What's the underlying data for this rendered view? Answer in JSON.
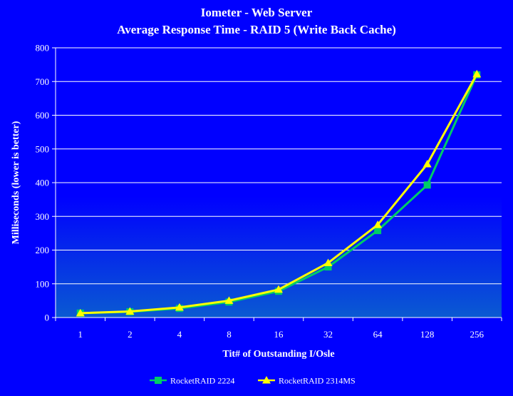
{
  "chart_data": {
    "type": "line",
    "title": "Iometer - Web Server",
    "subtitle": "Average Response Time - RAID 5 (Write Back Cache)",
    "xlabel": "Tit# of Outstanding I/Osle",
    "ylabel": "Milliseconds (lower is better)",
    "categories": [
      "1",
      "2",
      "4",
      "8",
      "16",
      "32",
      "64",
      "128",
      "256"
    ],
    "ylim": [
      0,
      800
    ],
    "yticks": [
      0,
      100,
      200,
      300,
      400,
      500,
      600,
      700,
      800
    ],
    "grid": true,
    "legend_position": "bottom",
    "series": [
      {
        "name": "RocketRAID 2224",
        "values": [
          13,
          17,
          27,
          46,
          78,
          150,
          258,
          393,
          720
        ],
        "color": "#00cc66",
        "marker": "square"
      },
      {
        "name": "RocketRAID 2314MS",
        "values": [
          13,
          18,
          30,
          50,
          83,
          162,
          275,
          455,
          722
        ],
        "color": "#ffff00",
        "marker": "triangle"
      }
    ],
    "colors": {
      "background": "#0000ff",
      "plot_top": "#0000ff",
      "plot_bottom": "#0a5ad2",
      "grid": "#ffffff",
      "text": "#ffffff"
    }
  }
}
